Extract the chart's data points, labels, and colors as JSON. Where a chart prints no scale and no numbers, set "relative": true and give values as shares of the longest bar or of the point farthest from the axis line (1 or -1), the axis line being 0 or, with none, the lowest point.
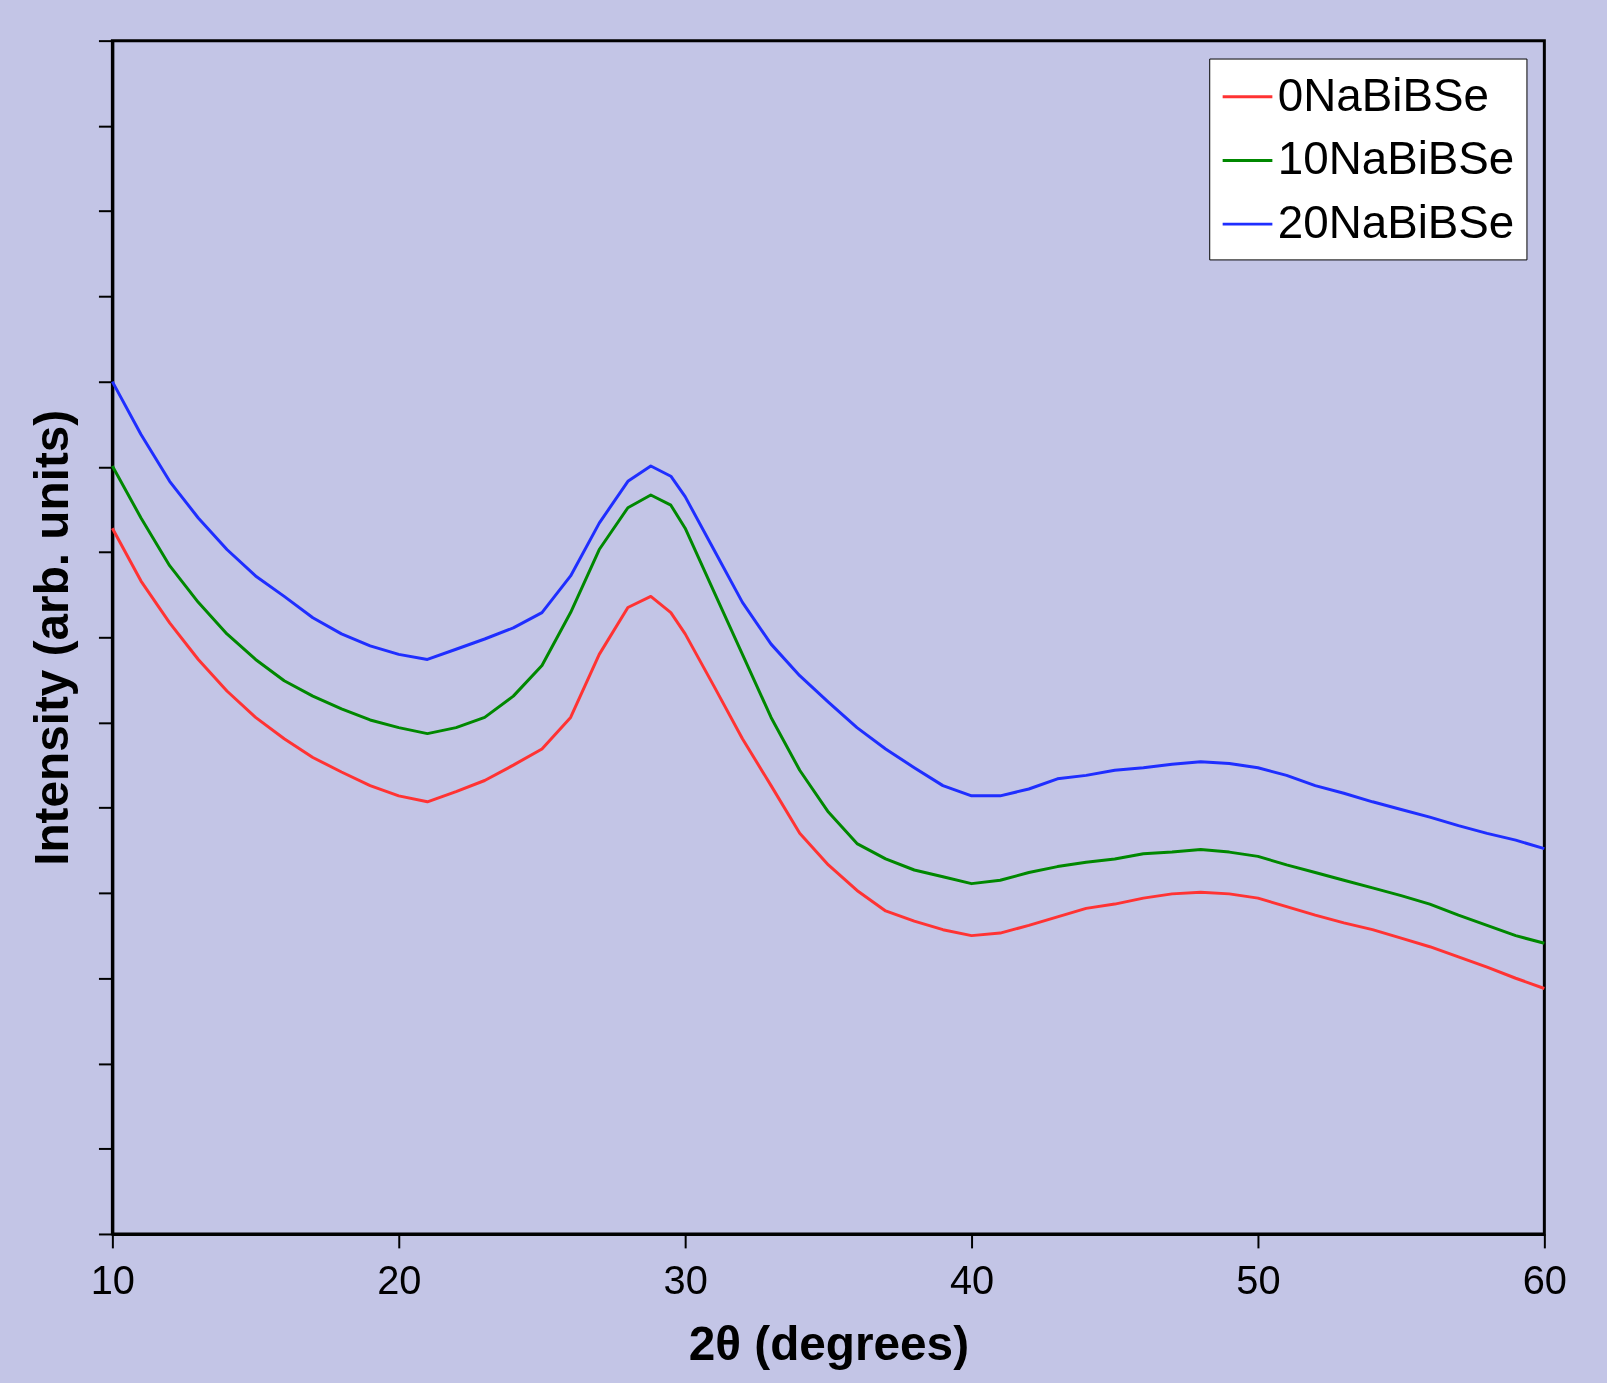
{
  "chart_data": {
    "type": "line",
    "xlabel": "2θ (degrees)",
    "ylabel": "Intensity (arb. units)",
    "relative": true,
    "tick_labels": "x",
    "x": [
      10,
      11,
      12,
      13,
      14,
      15,
      16,
      17,
      18,
      19,
      20,
      21,
      22,
      23,
      24,
      25,
      26,
      27,
      28,
      28.8,
      29.5,
      30,
      31,
      32,
      33,
      34,
      35,
      36,
      37,
      38,
      39,
      40,
      41,
      42,
      43,
      44,
      45,
      46,
      47,
      48,
      49,
      50,
      51,
      52,
      53,
      54,
      55,
      56,
      57,
      58,
      59,
      60
    ],
    "xlim": [
      10,
      60
    ],
    "xticks": [
      10,
      20,
      30,
      40,
      50,
      60
    ],
    "legend": "top right",
    "grid": false,
    "series": [
      {
        "name": "0NaBiBSe",
        "color": "#ff3333",
        "values": [
          0.828,
          0.766,
          0.717,
          0.674,
          0.637,
          0.606,
          0.581,
          0.559,
          0.542,
          0.526,
          0.514,
          0.507,
          0.519,
          0.532,
          0.55,
          0.569,
          0.606,
          0.68,
          0.735,
          0.748,
          0.729,
          0.704,
          0.643,
          0.581,
          0.526,
          0.47,
          0.433,
          0.403,
          0.379,
          0.367,
          0.357,
          0.35,
          0.353,
          0.362,
          0.372,
          0.382,
          0.387,
          0.394,
          0.399,
          0.401,
          0.399,
          0.394,
          0.384,
          0.374,
          0.365,
          0.357,
          0.347,
          0.337,
          0.325,
          0.313,
          0.3,
          0.288
        ]
      },
      {
        "name": "10NaBiBSe",
        "color": "#008800",
        "values": [
          0.901,
          0.84,
          0.784,
          0.741,
          0.704,
          0.674,
          0.649,
          0.631,
          0.616,
          0.603,
          0.594,
          0.587,
          0.594,
          0.606,
          0.631,
          0.667,
          0.729,
          0.803,
          0.852,
          0.867,
          0.855,
          0.828,
          0.754,
          0.68,
          0.606,
          0.544,
          0.495,
          0.458,
          0.44,
          0.427,
          0.419,
          0.411,
          0.415,
          0.424,
          0.431,
          0.436,
          0.44,
          0.446,
          0.448,
          0.451,
          0.448,
          0.443,
          0.433,
          0.424,
          0.415,
          0.406,
          0.397,
          0.387,
          0.374,
          0.362,
          0.35,
          0.341
        ]
      },
      {
        "name": "20NaBiBSe",
        "color": "#1f2eff",
        "values": [
          1.0,
          0.938,
          0.883,
          0.84,
          0.803,
          0.772,
          0.748,
          0.723,
          0.704,
          0.69,
          0.68,
          0.674,
          0.686,
          0.698,
          0.711,
          0.729,
          0.772,
          0.834,
          0.883,
          0.901,
          0.889,
          0.865,
          0.803,
          0.741,
          0.692,
          0.655,
          0.624,
          0.594,
          0.569,
          0.547,
          0.526,
          0.514,
          0.514,
          0.522,
          0.534,
          0.538,
          0.544,
          0.547,
          0.551,
          0.554,
          0.552,
          0.547,
          0.538,
          0.526,
          0.517,
          0.507,
          0.498,
          0.489,
          0.479,
          0.47,
          0.462,
          0.452
        ]
      }
    ]
  }
}
